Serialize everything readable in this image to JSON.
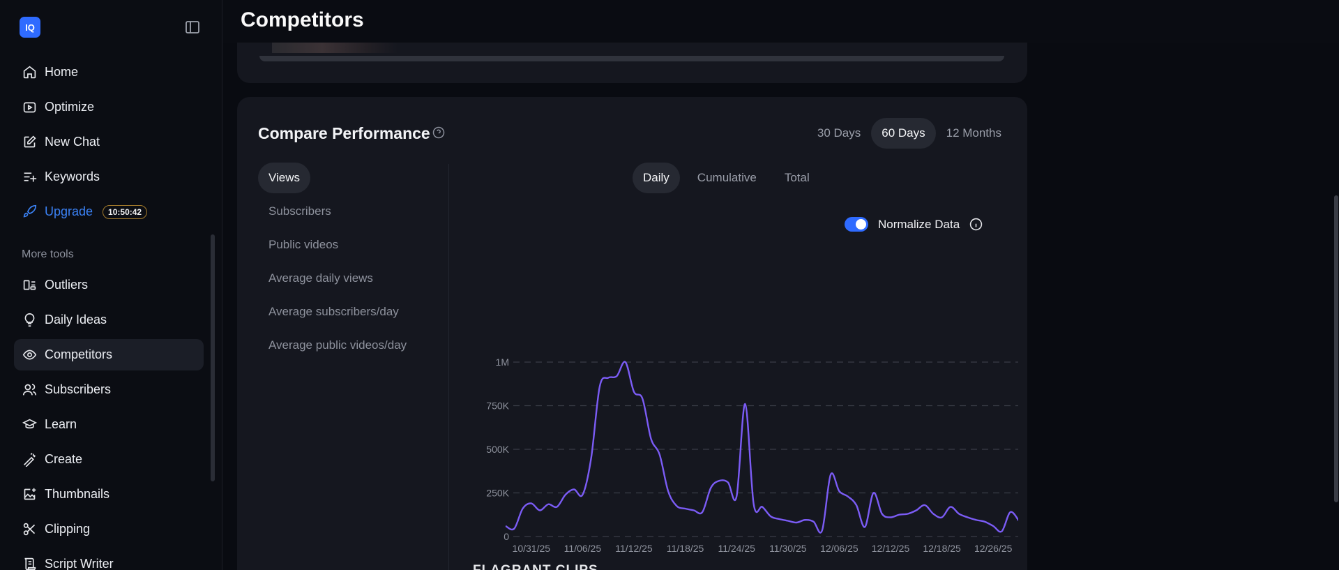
{
  "app": {
    "logo_text": "IQ"
  },
  "sidebar": {
    "items": [
      {
        "label": "Home",
        "icon": "home-icon"
      },
      {
        "label": "Optimize",
        "icon": "optimize-icon"
      },
      {
        "label": "New Chat",
        "icon": "edit-icon"
      },
      {
        "label": "Keywords",
        "icon": "keywords-icon"
      },
      {
        "label": "Upgrade",
        "icon": "rocket-icon",
        "timer": "10:50:42"
      }
    ],
    "more_tools_label": "More tools",
    "tools": [
      {
        "label": "Outliers",
        "icon": "outliers-icon"
      },
      {
        "label": "Daily Ideas",
        "icon": "lightbulb-icon"
      },
      {
        "label": "Competitors",
        "icon": "eye-icon",
        "active": true
      },
      {
        "label": "Subscribers",
        "icon": "users-icon"
      },
      {
        "label": "Learn",
        "icon": "graduation-cap-icon"
      },
      {
        "label": "Create",
        "icon": "wand-icon"
      },
      {
        "label": "Thumbnails",
        "icon": "image-plus-icon"
      },
      {
        "label": "Clipping",
        "icon": "scissors-icon"
      },
      {
        "label": "Script Writer",
        "icon": "scroll-icon"
      }
    ]
  },
  "header": {
    "title": "Competitors"
  },
  "compare": {
    "title": "Compare Performance",
    "ranges": [
      {
        "label": "30 Days",
        "active": false
      },
      {
        "label": "60 Days",
        "active": true
      },
      {
        "label": "12 Months",
        "active": false
      }
    ],
    "metrics": [
      {
        "label": "Views",
        "active": true
      },
      {
        "label": "Subscribers",
        "active": false
      },
      {
        "label": "Public videos",
        "active": false
      },
      {
        "label": "Average daily views",
        "active": false
      },
      {
        "label": "Average subscribers/day",
        "active": false
      },
      {
        "label": "Average public videos/day",
        "active": false
      }
    ],
    "modes": [
      {
        "label": "Daily",
        "active": true
      },
      {
        "label": "Cumulative",
        "active": false
      },
      {
        "label": "Total",
        "active": false
      }
    ],
    "normalize_label": "Normalize Data",
    "normalize_on": true,
    "next_section_label": "FLAGRANT CLIPS"
  },
  "colors": {
    "accent": "#2f6bff",
    "line": "#7b5cf5",
    "upgrade": "#3b82f6"
  },
  "chart_data": {
    "type": "line",
    "title": "",
    "xlabel": "",
    "ylabel": "",
    "ylim": [
      0,
      1000000
    ],
    "y_ticks": [
      0,
      250000,
      500000,
      750000,
      1000000
    ],
    "y_tick_labels": [
      "0",
      "250K",
      "500K",
      "750K",
      "1M"
    ],
    "x_tick_labels": [
      "10/31/25",
      "11/06/25",
      "11/12/25",
      "11/18/25",
      "11/24/25",
      "11/30/25",
      "12/06/25",
      "12/12/25",
      "12/18/25",
      "12/26/25"
    ],
    "x_tick_index": [
      3,
      9,
      15,
      21,
      27,
      33,
      39,
      45,
      51,
      57
    ],
    "grid": true,
    "series": [
      {
        "values": [
          60000,
          45000,
          160000,
          190000,
          150000,
          185000,
          170000,
          240000,
          270000,
          240000,
          450000,
          860000,
          910000,
          920000,
          1000000,
          830000,
          790000,
          560000,
          470000,
          260000,
          175000,
          160000,
          150000,
          140000,
          280000,
          320000,
          310000,
          230000,
          760000,
          185000,
          170000,
          115000,
          100000,
          90000,
          80000,
          95000,
          85000,
          35000,
          355000,
          260000,
          230000,
          180000,
          55000,
          250000,
          130000,
          110000,
          125000,
          130000,
          150000,
          180000,
          130000,
          110000,
          170000,
          130000,
          110000,
          95000,
          85000,
          60000,
          30000,
          140000,
          90000
        ]
      }
    ]
  }
}
